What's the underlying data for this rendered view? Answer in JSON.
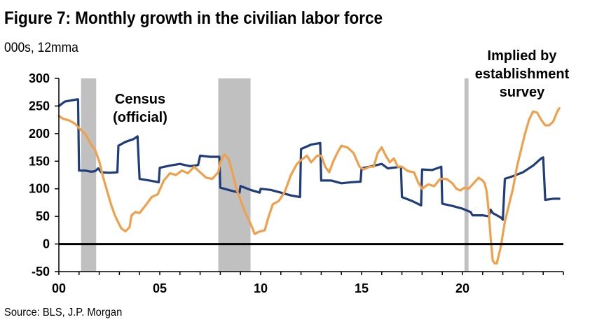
{
  "title": "Figure 7: Monthly growth in the civilian labor force",
  "subtitle": "000s, 12mma",
  "source": "Source: BLS, J.P. Morgan",
  "chart_data": {
    "type": "line",
    "xlim": [
      0,
      25
    ],
    "ylim": [
      -50,
      300
    ],
    "x_ticks": [
      {
        "value": 0,
        "label": "00"
      },
      {
        "value": 5,
        "label": "05"
      },
      {
        "value": 10,
        "label": "10"
      },
      {
        "value": 15,
        "label": "15"
      },
      {
        "value": 20,
        "label": "20"
      }
    ],
    "y_ticks": [
      -50,
      0,
      50,
      100,
      150,
      200,
      250,
      300
    ],
    "zero_line": 0,
    "shaded_periods": [
      [
        1.1,
        1.85
      ],
      [
        7.9,
        9.5
      ],
      [
        20.1,
        20.3
      ]
    ],
    "annotations": [
      {
        "lines": [
          "Census",
          "(official)"
        ]
      },
      {
        "lines": [
          "Implied by",
          "establishment",
          "survey"
        ]
      }
    ],
    "series": [
      {
        "color": "#1f3d7a",
        "points": [
          [
            0.0,
            250
          ],
          [
            0.3,
            258
          ],
          [
            0.6,
            260
          ],
          [
            0.9,
            262
          ],
          [
            0.95,
            262
          ],
          [
            1.0,
            133
          ],
          [
            1.3,
            133
          ],
          [
            1.6,
            131
          ],
          [
            1.8,
            132
          ],
          [
            1.95,
            137
          ],
          [
            2.1,
            130
          ],
          [
            2.5,
            129
          ],
          [
            2.9,
            130
          ],
          [
            2.95,
            178
          ],
          [
            3.3,
            185
          ],
          [
            3.7,
            190
          ],
          [
            3.9,
            195
          ],
          [
            4.0,
            118
          ],
          [
            4.5,
            115
          ],
          [
            4.95,
            112
          ],
          [
            5.0,
            138
          ],
          [
            5.5,
            142
          ],
          [
            6.0,
            145
          ],
          [
            6.5,
            141
          ],
          [
            6.9,
            143
          ],
          [
            7.0,
            160
          ],
          [
            7.5,
            158
          ],
          [
            7.95,
            158
          ],
          [
            8.0,
            102
          ],
          [
            8.5,
            97
          ],
          [
            8.95,
            93
          ],
          [
            9.0,
            105
          ],
          [
            9.5,
            98
          ],
          [
            9.95,
            93
          ],
          [
            10.0,
            100
          ],
          [
            10.5,
            98
          ],
          [
            11.0,
            93
          ],
          [
            11.5,
            88
          ],
          [
            11.95,
            85
          ],
          [
            12.0,
            172
          ],
          [
            12.5,
            180
          ],
          [
            12.95,
            183
          ],
          [
            13.0,
            115
          ],
          [
            13.5,
            115
          ],
          [
            14.0,
            110
          ],
          [
            14.5,
            112
          ],
          [
            14.95,
            113
          ],
          [
            15.0,
            137
          ],
          [
            15.5,
            141
          ],
          [
            16.0,
            145
          ],
          [
            16.3,
            137
          ],
          [
            16.95,
            140
          ],
          [
            17.0,
            85
          ],
          [
            17.5,
            78
          ],
          [
            17.95,
            70
          ],
          [
            18.0,
            135
          ],
          [
            18.5,
            134
          ],
          [
            18.95,
            140
          ],
          [
            19.0,
            73
          ],
          [
            19.5,
            69
          ],
          [
            20.0,
            64
          ],
          [
            20.4,
            58
          ],
          [
            20.5,
            52
          ],
          [
            21.0,
            52
          ],
          [
            21.3,
            50
          ],
          [
            21.4,
            62
          ],
          [
            21.5,
            56
          ],
          [
            21.9,
            48
          ],
          [
            22.0,
            44
          ],
          [
            22.1,
            118
          ],
          [
            22.5,
            123
          ],
          [
            23.0,
            130
          ],
          [
            23.5,
            142
          ],
          [
            23.9,
            155
          ],
          [
            24.0,
            157
          ],
          [
            24.1,
            80
          ],
          [
            24.5,
            82
          ],
          [
            24.8,
            82
          ]
        ]
      },
      {
        "color": "#f0a04b",
        "points": [
          [
            0.0,
            232
          ],
          [
            0.2,
            227
          ],
          [
            0.5,
            224
          ],
          [
            0.8,
            218
          ],
          [
            1.0,
            210
          ],
          [
            1.3,
            200
          ],
          [
            1.6,
            180
          ],
          [
            1.8,
            170
          ],
          [
            2.0,
            150
          ],
          [
            2.2,
            120
          ],
          [
            2.4,
            95
          ],
          [
            2.6,
            70
          ],
          [
            2.8,
            50
          ],
          [
            3.0,
            35
          ],
          [
            3.1,
            28
          ],
          [
            3.3,
            23
          ],
          [
            3.5,
            30
          ],
          [
            3.6,
            52
          ],
          [
            3.8,
            58
          ],
          [
            4.0,
            56
          ],
          [
            4.3,
            70
          ],
          [
            4.6,
            85
          ],
          [
            4.9,
            90
          ],
          [
            5.2,
            115
          ],
          [
            5.5,
            128
          ],
          [
            5.8,
            125
          ],
          [
            6.1,
            133
          ],
          [
            6.4,
            128
          ],
          [
            6.7,
            140
          ],
          [
            7.0,
            130
          ],
          [
            7.3,
            120
          ],
          [
            7.6,
            118
          ],
          [
            7.9,
            130
          ],
          [
            8.0,
            148
          ],
          [
            8.2,
            162
          ],
          [
            8.4,
            155
          ],
          [
            8.6,
            130
          ],
          [
            8.8,
            100
          ],
          [
            9.0,
            80
          ],
          [
            9.2,
            60
          ],
          [
            9.4,
            45
          ],
          [
            9.6,
            28
          ],
          [
            9.7,
            18
          ],
          [
            9.9,
            22
          ],
          [
            10.2,
            25
          ],
          [
            10.4,
            50
          ],
          [
            10.6,
            72
          ],
          [
            10.9,
            78
          ],
          [
            11.2,
            95
          ],
          [
            11.5,
            125
          ],
          [
            11.8,
            145
          ],
          [
            12.0,
            152
          ],
          [
            12.3,
            160
          ],
          [
            12.5,
            148
          ],
          [
            12.8,
            160
          ],
          [
            13.0,
            160
          ],
          [
            13.2,
            140
          ],
          [
            13.4,
            130
          ],
          [
            13.6,
            150
          ],
          [
            13.8,
            165
          ],
          [
            14.0,
            178
          ],
          [
            14.3,
            175
          ],
          [
            14.6,
            165
          ],
          [
            14.9,
            140
          ],
          [
            15.1,
            135
          ],
          [
            15.4,
            140
          ],
          [
            15.6,
            140
          ],
          [
            15.8,
            165
          ],
          [
            16.0,
            175
          ],
          [
            16.2,
            160
          ],
          [
            16.4,
            148
          ],
          [
            16.6,
            155
          ],
          [
            16.8,
            140
          ],
          [
            17.0,
            140
          ],
          [
            17.3,
            132
          ],
          [
            17.6,
            130
          ],
          [
            17.8,
            112
          ],
          [
            18.0,
            100
          ],
          [
            18.3,
            108
          ],
          [
            18.6,
            105
          ],
          [
            18.9,
            118
          ],
          [
            19.2,
            118
          ],
          [
            19.5,
            110
          ],
          [
            19.7,
            100
          ],
          [
            19.9,
            97
          ],
          [
            20.1,
            102
          ],
          [
            20.3,
            100
          ],
          [
            20.6,
            112
          ],
          [
            20.8,
            120
          ],
          [
            21.0,
            115
          ],
          [
            21.1,
            110
          ],
          [
            21.2,
            95
          ],
          [
            21.3,
            60
          ],
          [
            21.4,
            10
          ],
          [
            21.5,
            -30
          ],
          [
            21.6,
            -35
          ],
          [
            21.7,
            -35
          ],
          [
            21.9,
            -5
          ],
          [
            22.1,
            40
          ],
          [
            22.3,
            70
          ],
          [
            22.5,
            100
          ],
          [
            22.7,
            140
          ],
          [
            22.9,
            170
          ],
          [
            23.1,
            200
          ],
          [
            23.3,
            225
          ],
          [
            23.5,
            240
          ],
          [
            23.7,
            238
          ],
          [
            23.9,
            225
          ],
          [
            24.1,
            215
          ],
          [
            24.3,
            215
          ],
          [
            24.5,
            222
          ],
          [
            24.7,
            240
          ],
          [
            24.8,
            246
          ]
        ]
      }
    ]
  }
}
